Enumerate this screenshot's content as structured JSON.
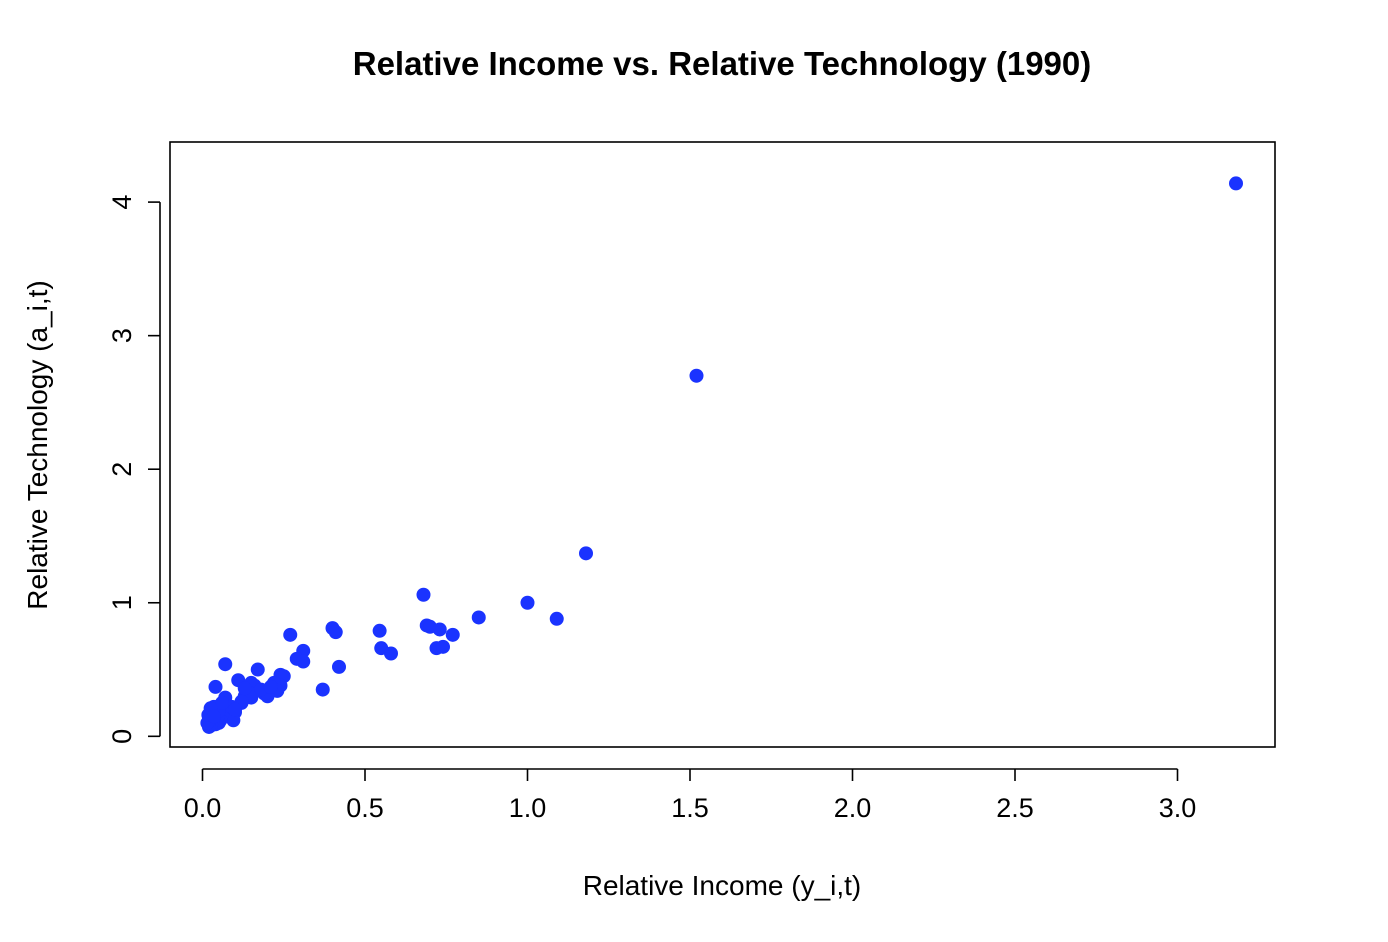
{
  "chart_data": {
    "type": "scatter",
    "title": "Relative Income vs. Relative Technology (1990)",
    "xlabel": "Relative Income (y_i,t)",
    "ylabel": "Relative Technology (a_i,t)",
    "xlim": [
      -0.1,
      3.3
    ],
    "ylim": [
      -0.08,
      4.45
    ],
    "xticks": [
      0.0,
      0.5,
      1.0,
      1.5,
      2.0,
      2.5,
      3.0
    ],
    "xtick_labels": [
      "0.0",
      "0.5",
      "1.0",
      "1.5",
      "2.0",
      "2.5",
      "3.0"
    ],
    "yticks": [
      0,
      1,
      2,
      3,
      4
    ],
    "ytick_labels": [
      "0",
      "1",
      "2",
      "3",
      "4"
    ],
    "grid": false,
    "marker_color": "#1a33ff",
    "series": [
      {
        "points": [
          [
            3.18,
            4.14
          ],
          [
            1.52,
            2.7
          ],
          [
            1.18,
            1.37
          ],
          [
            1.0,
            1.0
          ],
          [
            1.09,
            0.88
          ],
          [
            0.85,
            0.89
          ],
          [
            0.68,
            1.06
          ],
          [
            0.69,
            0.83
          ],
          [
            0.7,
            0.82
          ],
          [
            0.73,
            0.8
          ],
          [
            0.77,
            0.76
          ],
          [
            0.72,
            0.66
          ],
          [
            0.74,
            0.67
          ],
          [
            0.545,
            0.79
          ],
          [
            0.55,
            0.66
          ],
          [
            0.58,
            0.62
          ],
          [
            0.4,
            0.81
          ],
          [
            0.41,
            0.78
          ],
          [
            0.42,
            0.52
          ],
          [
            0.37,
            0.35
          ],
          [
            0.27,
            0.76
          ],
          [
            0.31,
            0.64
          ],
          [
            0.29,
            0.58
          ],
          [
            0.31,
            0.56
          ],
          [
            0.24,
            0.46
          ],
          [
            0.25,
            0.45
          ],
          [
            0.24,
            0.38
          ],
          [
            0.22,
            0.4
          ],
          [
            0.23,
            0.34
          ],
          [
            0.2,
            0.3
          ],
          [
            0.19,
            0.32
          ],
          [
            0.17,
            0.5
          ],
          [
            0.16,
            0.38
          ],
          [
            0.15,
            0.4
          ],
          [
            0.14,
            0.33
          ],
          [
            0.13,
            0.3
          ],
          [
            0.12,
            0.25
          ],
          [
            0.11,
            0.42
          ],
          [
            0.1,
            0.18
          ],
          [
            0.09,
            0.14
          ],
          [
            0.095,
            0.12
          ],
          [
            0.08,
            0.22
          ],
          [
            0.07,
            0.54
          ],
          [
            0.07,
            0.29
          ],
          [
            0.065,
            0.2
          ],
          [
            0.06,
            0.16
          ],
          [
            0.055,
            0.12
          ],
          [
            0.05,
            0.1
          ],
          [
            0.045,
            0.14
          ],
          [
            0.04,
            0.37
          ],
          [
            0.04,
            0.09
          ],
          [
            0.035,
            0.22
          ],
          [
            0.03,
            0.18
          ],
          [
            0.03,
            0.11
          ],
          [
            0.025,
            0.08
          ],
          [
            0.02,
            0.13
          ],
          [
            0.02,
            0.07
          ],
          [
            0.015,
            0.1
          ],
          [
            0.018,
            0.16
          ],
          [
            0.05,
            0.19
          ],
          [
            0.09,
            0.22
          ],
          [
            0.18,
            0.35
          ],
          [
            0.21,
            0.37
          ],
          [
            0.15,
            0.29
          ],
          [
            0.12,
            0.26
          ],
          [
            0.06,
            0.25
          ],
          [
            0.025,
            0.21
          ],
          [
            0.035,
            0.15
          ],
          [
            0.1,
            0.2
          ],
          [
            0.13,
            0.36
          ]
        ]
      }
    ]
  }
}
